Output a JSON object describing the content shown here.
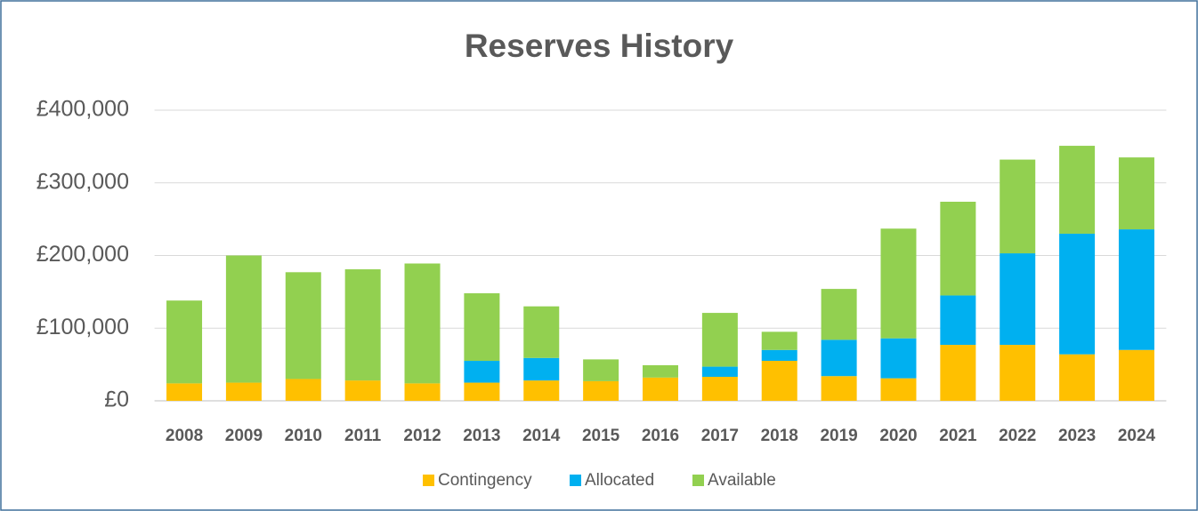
{
  "chart_data": {
    "type": "stacked_bar",
    "title": "Reserves History",
    "categories": [
      "2008",
      "2009",
      "2010",
      "2011",
      "2012",
      "2013",
      "2014",
      "2015",
      "2016",
      "2017",
      "2018",
      "2019",
      "2020",
      "2021",
      "2022",
      "2023",
      "2024"
    ],
    "series": [
      {
        "name": "Contingency",
        "color": "#FFC000",
        "values": [
          24000,
          25000,
          30000,
          28000,
          24000,
          25000,
          28000,
          27000,
          32000,
          33000,
          55000,
          34000,
          31000,
          77000,
          77000,
          64000,
          70000
        ]
      },
      {
        "name": "Allocated",
        "color": "#00B0F0",
        "values": [
          0,
          0,
          0,
          0,
          0,
          30000,
          31000,
          0,
          0,
          14000,
          15000,
          50000,
          55000,
          68000,
          126000,
          166000,
          166000
        ]
      },
      {
        "name": "Available",
        "color": "#92D050",
        "values": [
          114000,
          175000,
          147000,
          153000,
          165000,
          93000,
          71000,
          30000,
          17000,
          74000,
          25000,
          70000,
          151000,
          129000,
          129000,
          121000,
          99000
        ]
      }
    ],
    "ylim": [
      0,
      400000
    ],
    "yticks": [
      {
        "value": 0,
        "label": "£0"
      },
      {
        "value": 100000,
        "label": "£100,000"
      },
      {
        "value": 200000,
        "label": "£200,000"
      },
      {
        "value": 300000,
        "label": "£300,000"
      },
      {
        "value": 400000,
        "label": "£400,000"
      }
    ],
    "grid": true,
    "legend": "bottom"
  }
}
